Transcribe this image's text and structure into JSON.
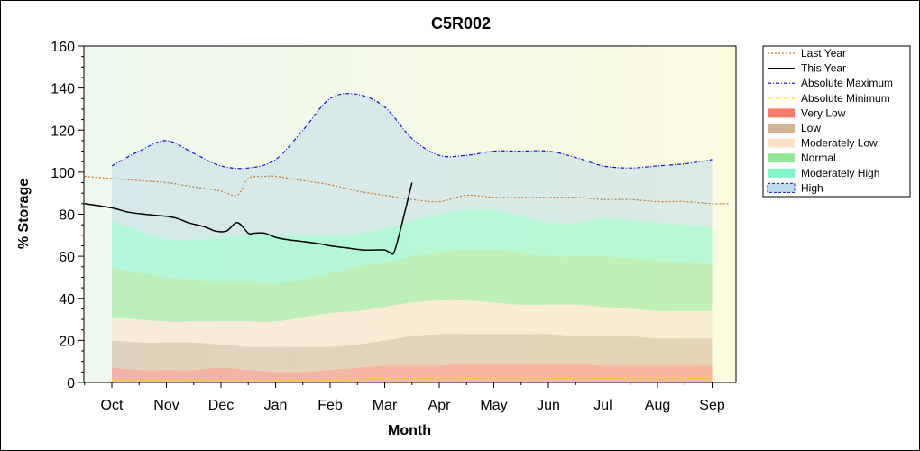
{
  "chart_data": {
    "type": "area",
    "title": "C5R002",
    "xlabel": "Month",
    "ylabel": "% Storage",
    "ylim": [
      0,
      160
    ],
    "yticks": [
      0,
      20,
      40,
      60,
      80,
      100,
      120,
      140,
      160
    ],
    "categories": [
      "Oct",
      "Nov",
      "Dec",
      "Jan",
      "Feb",
      "Mar",
      "Apr",
      "May",
      "Jun",
      "Jul",
      "Aug",
      "Sep"
    ],
    "legend_position": "right",
    "grid": false,
    "background_colors": [
      "#eef8ee",
      "#fbfbdf"
    ],
    "band_x": [
      0,
      0.5,
      1,
      1.5,
      2,
      2.5,
      3,
      3.5,
      4,
      4.5,
      5,
      5.5,
      6,
      6.5,
      7,
      7.5,
      8,
      8.5,
      9,
      9.5,
      10,
      10.5,
      11
    ],
    "bands": [
      {
        "name": "Very Low",
        "color": "#f87c68",
        "values": [
          7,
          6,
          6,
          6,
          7,
          6,
          5,
          5,
          6,
          7,
          8,
          8,
          8,
          9,
          9,
          9,
          9,
          9,
          8,
          8,
          8,
          8,
          8
        ]
      },
      {
        "name": "Low",
        "color": "#d4b495",
        "values": [
          20,
          19,
          19,
          19,
          18,
          17,
          17,
          17,
          17,
          18,
          20,
          22,
          23,
          23,
          23,
          23,
          23,
          22,
          22,
          22,
          21,
          21,
          21
        ]
      },
      {
        "name": "Moderately Low",
        "color": "#fce1c6",
        "values": [
          31,
          30,
          29,
          29,
          29,
          29,
          29,
          31,
          33,
          34,
          36,
          38,
          39,
          39,
          38,
          37,
          37,
          37,
          36,
          35,
          34,
          34,
          34
        ]
      },
      {
        "name": "Normal",
        "color": "#92e694",
        "values": [
          55,
          52,
          50,
          49,
          48,
          48,
          47,
          49,
          52,
          55,
          57,
          60,
          62,
          63,
          63,
          62,
          60,
          60,
          60,
          59,
          58,
          57,
          56
        ]
      },
      {
        "name": "Moderately High",
        "color": "#7ff6c8",
        "values": [
          77,
          72,
          68,
          68,
          69,
          70,
          70,
          70,
          70,
          71,
          73,
          77,
          80,
          82,
          82,
          79,
          76,
          76,
          78,
          77,
          76,
          75,
          74
        ]
      },
      {
        "name": "High",
        "color": "#c0dce8",
        "values": [
          103,
          110,
          115,
          109,
          103,
          102,
          106,
          120,
          135,
          137,
          131,
          116,
          108,
          108,
          110,
          110,
          110,
          107,
          103,
          102,
          103,
          104,
          106
        ]
      }
    ],
    "series": [
      {
        "name": "Last Year",
        "style": "dotted",
        "color": "#c87830",
        "x": [
          -0.5,
          0,
          0.5,
          1,
          1.5,
          2,
          2.3,
          2.5,
          2.8,
          3,
          3.5,
          4,
          4.5,
          5,
          5.5,
          6,
          6.5,
          7,
          7.5,
          8,
          8.5,
          9,
          9.5,
          10,
          10.5,
          11,
          11.3
        ],
        "values": [
          98,
          97,
          96,
          95,
          93,
          91,
          89,
          97,
          98,
          98,
          96,
          94,
          91,
          89,
          87,
          86,
          89,
          88,
          88,
          88,
          88,
          87,
          87,
          86,
          86,
          85,
          85
        ]
      },
      {
        "name": "This Year",
        "style": "solid",
        "color": "#000000",
        "x": [
          -0.5,
          0,
          0.3,
          0.6,
          1,
          1.2,
          1.4,
          1.7,
          1.9,
          2.1,
          2.3,
          2.5,
          2.6,
          2.8,
          3,
          3.2,
          3.5,
          3.8,
          4,
          4.3,
          4.6,
          4.8,
          5,
          5.1,
          5.2,
          5.5
        ],
        "values": [
          85,
          83,
          81,
          80,
          79,
          78,
          76,
          74,
          72,
          72,
          76,
          71,
          71,
          71,
          69,
          68,
          67,
          66,
          65,
          64,
          63,
          63,
          63,
          62,
          64,
          95
        ]
      },
      {
        "name": "Absolute Maximum",
        "style": "dashdot",
        "color": "#1010d0",
        "x": [
          0,
          0.5,
          1,
          1.5,
          2,
          2.5,
          3,
          3.5,
          4,
          4.5,
          5,
          5.5,
          6,
          6.5,
          7,
          7.5,
          8,
          8.5,
          9,
          9.5,
          10,
          10.5,
          11
        ],
        "values": [
          103,
          110,
          115,
          109,
          103,
          102,
          106,
          120,
          135,
          137,
          131,
          116,
          108,
          108,
          110,
          110,
          110,
          107,
          103,
          102,
          103,
          104,
          106
        ]
      },
      {
        "name": "Absolute Minimum",
        "style": "dashdot",
        "color": "#e8e800",
        "x": [
          0,
          1,
          2,
          3,
          4,
          5,
          6,
          7,
          8,
          9,
          10,
          11
        ],
        "values": [
          1,
          1,
          1,
          1,
          1,
          2,
          2,
          2,
          2,
          2,
          2,
          2
        ]
      }
    ],
    "legend": [
      {
        "label": "Last Year",
        "kind": "line",
        "style": "dotted",
        "color": "#c87830"
      },
      {
        "label": "This Year",
        "kind": "line",
        "style": "solid",
        "color": "#000000"
      },
      {
        "label": "Absolute Maximum",
        "kind": "line",
        "style": "dashdot",
        "color": "#1010d0"
      },
      {
        "label": "Absolute Minimum",
        "kind": "line",
        "style": "dashdot",
        "color": "#e8e800"
      },
      {
        "label": "Very Low",
        "kind": "band",
        "color": "#f87c68"
      },
      {
        "label": "Low",
        "kind": "band",
        "color": "#d4b495"
      },
      {
        "label": "Moderately Low",
        "kind": "band",
        "color": "#fce1c6"
      },
      {
        "label": "Normal",
        "kind": "band",
        "color": "#92e694"
      },
      {
        "label": "Moderately High",
        "kind": "band",
        "color": "#7ff6c8"
      },
      {
        "label": "High",
        "kind": "band",
        "color": "#c0dce8",
        "edge": "#1010d0"
      }
    ]
  }
}
